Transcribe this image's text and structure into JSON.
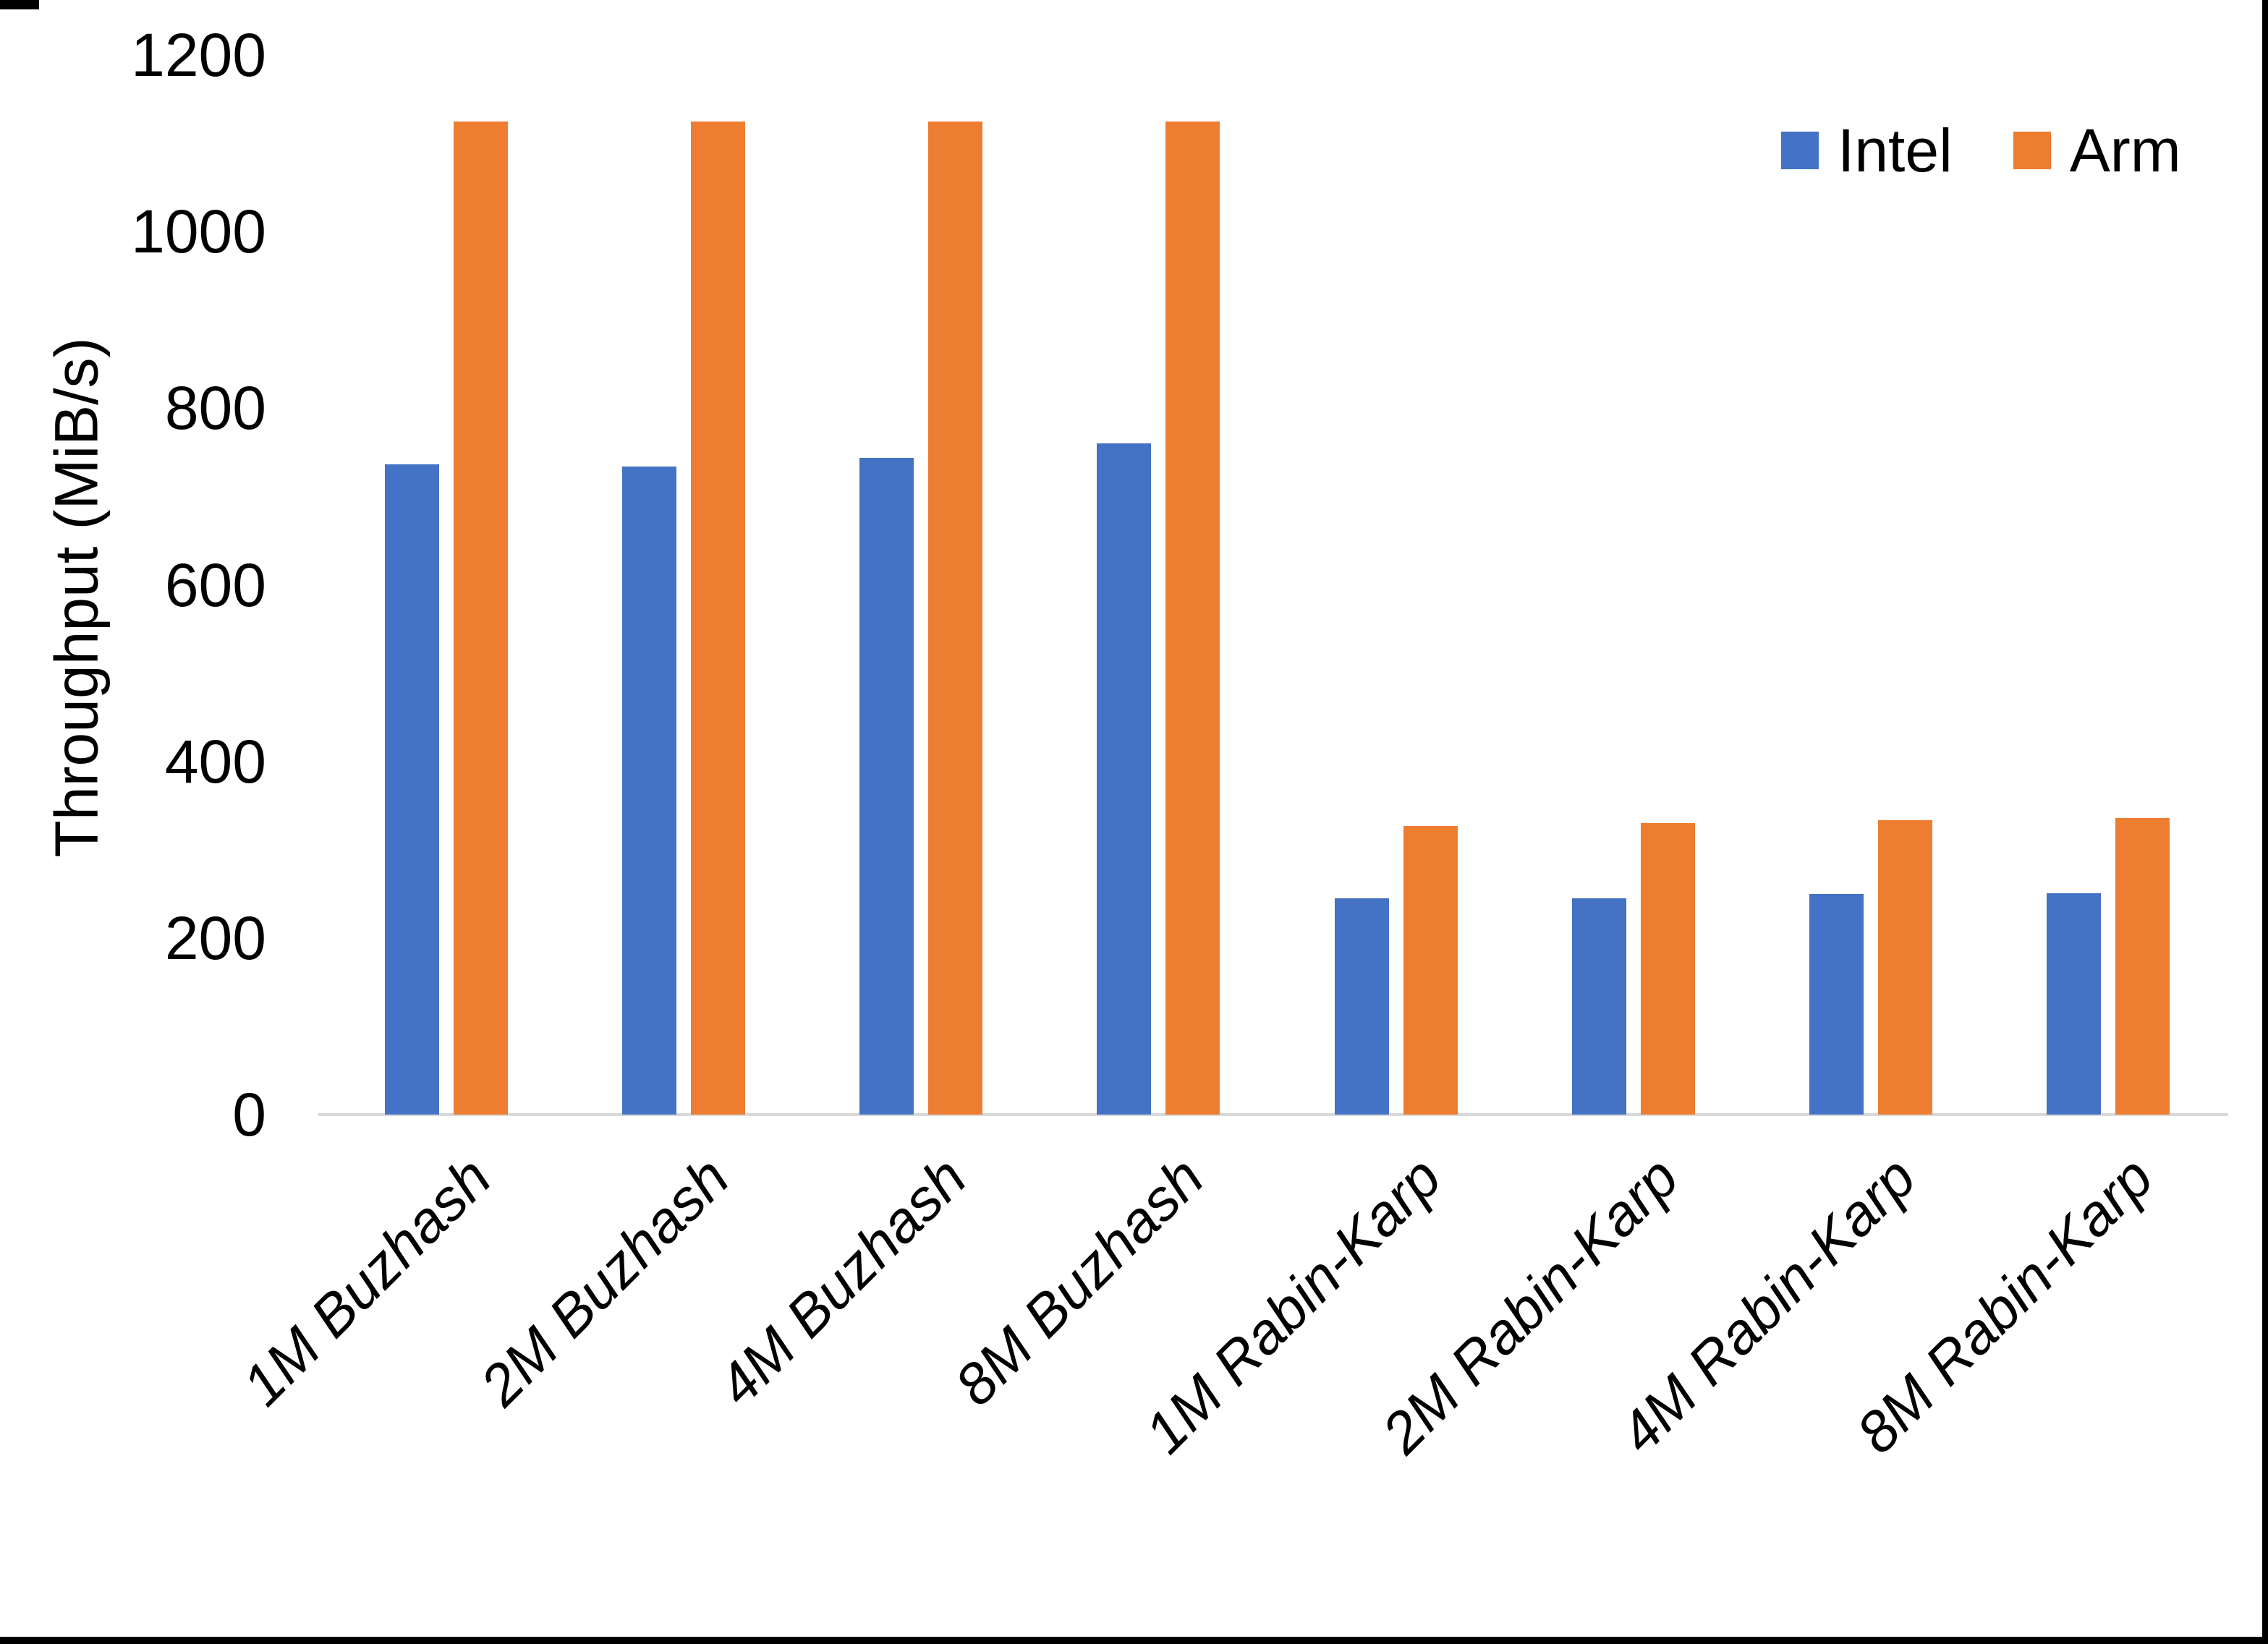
{
  "chart_data": {
    "type": "bar",
    "title": "",
    "xlabel": "",
    "ylabel": "Throughput (MiB/s)",
    "ylim": [
      0,
      1200
    ],
    "yticks": [
      0,
      200,
      400,
      600,
      800,
      1000,
      1200
    ],
    "grid": false,
    "legend_position": "top-right",
    "axis_line_color": "#D9D9D9",
    "text_color": "#000000",
    "categories": [
      "1M Buzhash",
      "2M Buzhash",
      "4M Buzhash",
      "8M Buzhash",
      "1M Rabin-Karp",
      "2M Rabin-Karp",
      "4M Rabin-Karp",
      "8M Rabin-Karp"
    ],
    "series": [
      {
        "name": "Intel",
        "color": "#4472C4",
        "values": [
          736,
          734,
          744,
          760,
          245,
          245,
          250,
          251
        ]
      },
      {
        "name": "Arm",
        "color": "#ED7D31",
        "values": [
          1125,
          1125,
          1125,
          1125,
          327,
          330,
          333,
          336
        ]
      }
    ]
  }
}
